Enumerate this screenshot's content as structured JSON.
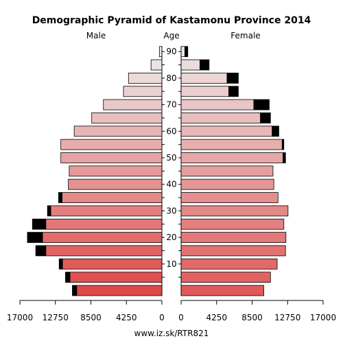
{
  "chart_data": {
    "type": "bar",
    "title": "Demographic Pyramid of Kastamonu Province 2014",
    "left_label": "Male",
    "center_label": "Age",
    "right_label": "Female",
    "footer": "www.iz.sk/RTR821",
    "xlim": [
      0,
      17000
    ],
    "x_ticks": [
      0,
      4250,
      8500,
      12750,
      17000
    ],
    "x_tick_labels": [
      "0",
      "4250",
      "8500",
      "12750",
      "17000"
    ],
    "y_ticks": [
      10,
      20,
      30,
      40,
      50,
      60,
      70,
      80,
      90
    ],
    "age_groups": [
      "0-4",
      "5-9",
      "10-14",
      "15-19",
      "20-24",
      "25-29",
      "30-34",
      "35-39",
      "40-44",
      "45-49",
      "50-54",
      "55-59",
      "60-64",
      "65-69",
      "70-74",
      "75-79",
      "80-84",
      "85-89",
      "90+"
    ],
    "series": [
      {
        "name": "Male",
        "values": [
          10200,
          11000,
          11900,
          13900,
          14300,
          13900,
          13300,
          11950,
          11200,
          11100,
          12100,
          12100,
          10500,
          8400,
          7000,
          4600,
          4000,
          1300,
          300
        ]
      },
      {
        "name": "Female",
        "values": [
          9900,
          10700,
          11500,
          12500,
          12550,
          12300,
          12800,
          11600,
          11100,
          11000,
          12200,
          12100,
          10900,
          9500,
          8700,
          5700,
          5500,
          2250,
          450
        ]
      }
    ],
    "excess": {
      "male": [
        520,
        550,
        400,
        1200,
        1800,
        1600,
        400,
        420,
        0,
        0,
        0,
        0,
        0,
        0,
        0,
        0,
        0,
        0,
        0
      ],
      "female": [
        0,
        0,
        0,
        0,
        0,
        0,
        0,
        0,
        0,
        0,
        300,
        200,
        800,
        1200,
        1850,
        1150,
        1350,
        1100,
        350
      ]
    },
    "colors": {
      "male_young": "#e04848",
      "male_old": "#ececec",
      "female_young": "#e05a5a",
      "female_old": "#ece4e4",
      "excess": "#000000",
      "stroke": "#000000"
    }
  }
}
